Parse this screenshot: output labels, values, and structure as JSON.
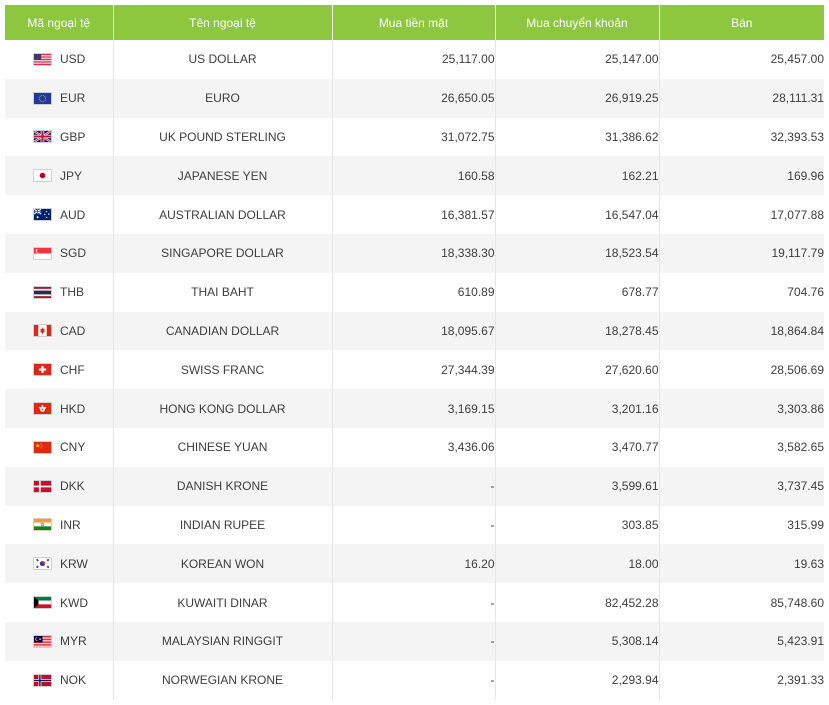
{
  "headers": {
    "code": "Mã ngoại tệ",
    "name": "Tên ngoại tệ",
    "cash_buy": "Mua tiền mặt",
    "transfer_buy": "Mua chuyển khoản",
    "sell": "Bán"
  },
  "rows": [
    {
      "flag": "us-flag-icon",
      "code": "USD",
      "name": "US DOLLAR",
      "cash_buy": "25,117.00",
      "transfer_buy": "25,147.00",
      "sell": "25,457.00"
    },
    {
      "flag": "eu-flag-icon",
      "code": "EUR",
      "name": "EURO",
      "cash_buy": "26,650.05",
      "transfer_buy": "26,919.25",
      "sell": "28,111.31"
    },
    {
      "flag": "gb-flag-icon",
      "code": "GBP",
      "name": "UK POUND STERLING",
      "cash_buy": "31,072.75",
      "transfer_buy": "31,386.62",
      "sell": "32,393.53"
    },
    {
      "flag": "jp-flag-icon",
      "code": "JPY",
      "name": "JAPANESE YEN",
      "cash_buy": "160.58",
      "transfer_buy": "162.21",
      "sell": "169.96"
    },
    {
      "flag": "au-flag-icon",
      "code": "AUD",
      "name": "AUSTRALIAN DOLLAR",
      "cash_buy": "16,381.57",
      "transfer_buy": "16,547.04",
      "sell": "17,077.88"
    },
    {
      "flag": "sg-flag-icon",
      "code": "SGD",
      "name": "SINGAPORE DOLLAR",
      "cash_buy": "18,338.30",
      "transfer_buy": "18,523.54",
      "sell": "19,117.79"
    },
    {
      "flag": "th-flag-icon",
      "code": "THB",
      "name": "THAI BAHT",
      "cash_buy": "610.89",
      "transfer_buy": "678.77",
      "sell": "704.76"
    },
    {
      "flag": "ca-flag-icon",
      "code": "CAD",
      "name": "CANADIAN DOLLAR",
      "cash_buy": "18,095.67",
      "transfer_buy": "18,278.45",
      "sell": "18,864.84"
    },
    {
      "flag": "ch-flag-icon",
      "code": "CHF",
      "name": "SWISS FRANC",
      "cash_buy": "27,344.39",
      "transfer_buy": "27,620.60",
      "sell": "28,506.69"
    },
    {
      "flag": "hk-flag-icon",
      "code": "HKD",
      "name": "HONG KONG DOLLAR",
      "cash_buy": "3,169.15",
      "transfer_buy": "3,201.16",
      "sell": "3,303.86"
    },
    {
      "flag": "cn-flag-icon",
      "code": "CNY",
      "name": "CHINESE YUAN",
      "cash_buy": "3,436.06",
      "transfer_buy": "3,470.77",
      "sell": "3,582.65"
    },
    {
      "flag": "dk-flag-icon",
      "code": "DKK",
      "name": "DANISH KRONE",
      "cash_buy": "-",
      "transfer_buy": "3,599.61",
      "sell": "3,737.45"
    },
    {
      "flag": "in-flag-icon",
      "code": "INR",
      "name": "INDIAN RUPEE",
      "cash_buy": "-",
      "transfer_buy": "303.85",
      "sell": "315.99"
    },
    {
      "flag": "kr-flag-icon",
      "code": "KRW",
      "name": "KOREAN WON",
      "cash_buy": "16.20",
      "transfer_buy": "18.00",
      "sell": "19.63"
    },
    {
      "flag": "kw-flag-icon",
      "code": "KWD",
      "name": "KUWAITI DINAR",
      "cash_buy": "-",
      "transfer_buy": "82,452.28",
      "sell": "85,748.60"
    },
    {
      "flag": "my-flag-icon",
      "code": "MYR",
      "name": "MALAYSIAN RINGGIT",
      "cash_buy": "-",
      "transfer_buy": "5,308.14",
      "sell": "5,423.91"
    },
    {
      "flag": "no-flag-icon",
      "code": "NOK",
      "name": "NORWEGIAN KRONE",
      "cash_buy": "-",
      "transfer_buy": "2,293.94",
      "sell": "2,391.33"
    }
  ],
  "colors": {
    "header_bg": "#8dc63f",
    "header_text": "#ffffff",
    "row_alt_bg": "#f4f4f4",
    "text": "#3d3d3d"
  }
}
